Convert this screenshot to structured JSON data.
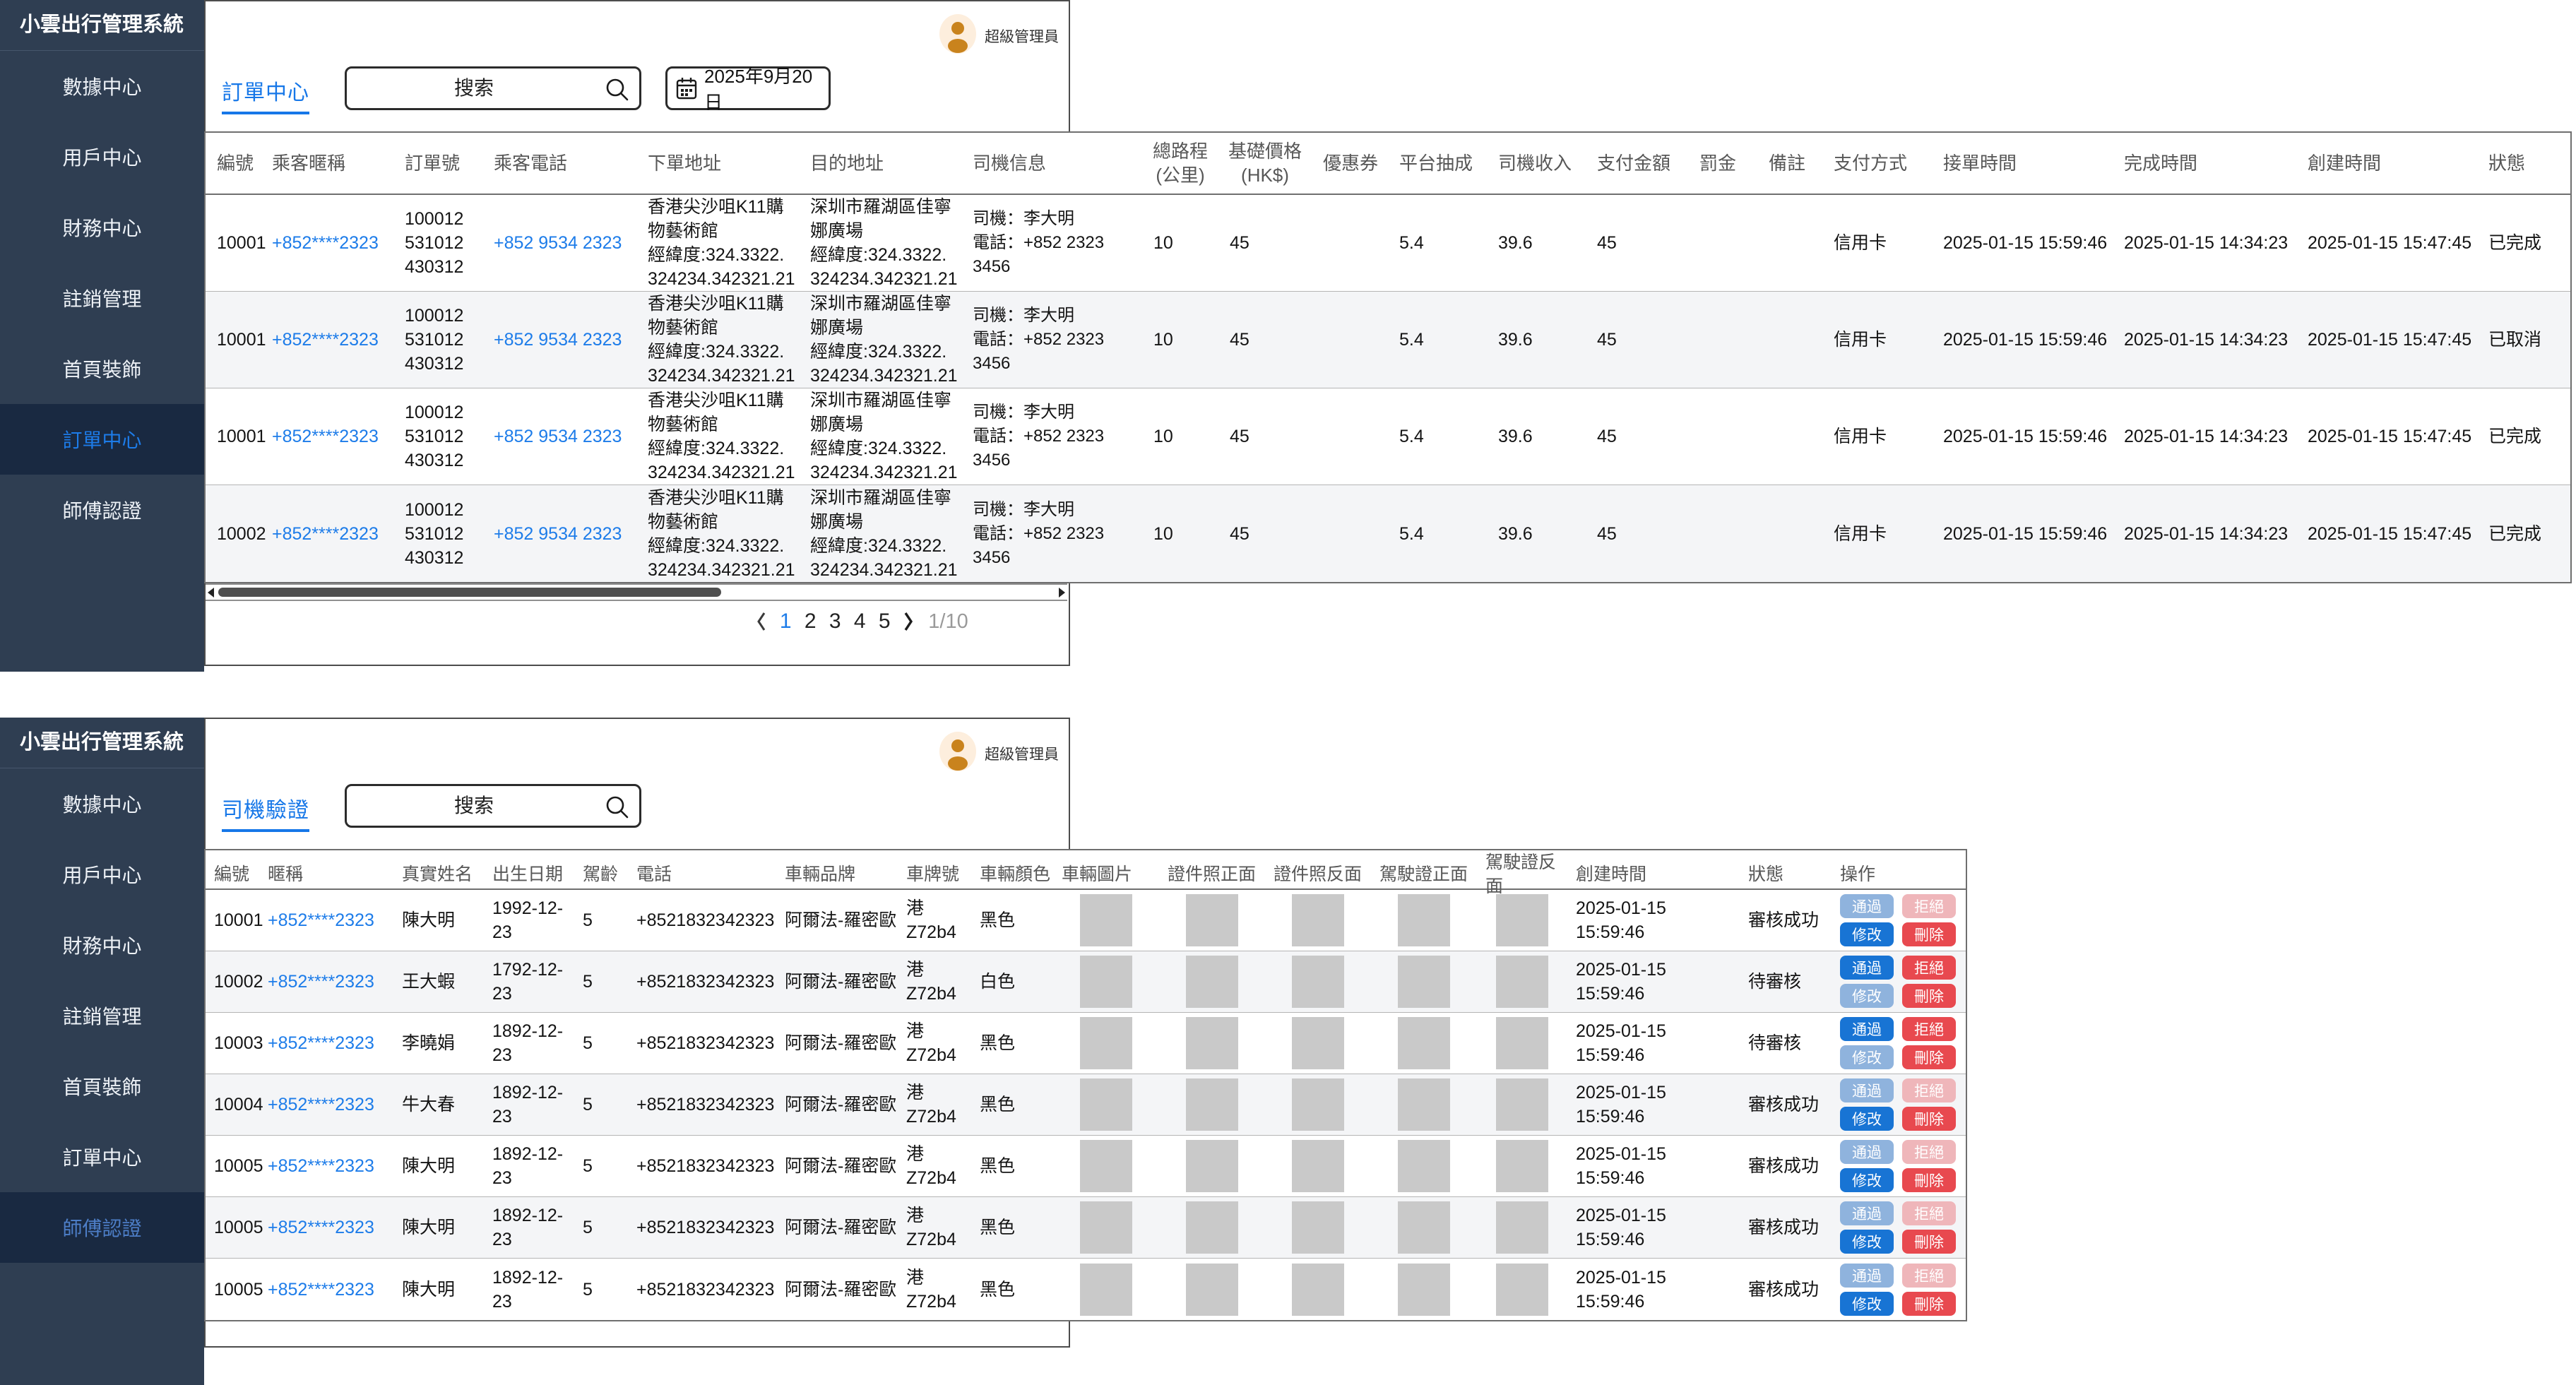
{
  "app": {
    "title": "小雲出行管理系統",
    "admin_label": "超級管理員"
  },
  "colors": {
    "sidebar_bg": "#2f3e52",
    "sidebar_selected_bg": "#192941",
    "sidebar_selected_text": "#1d7ce9",
    "sidebar_selected_text_bottom": "#4d7ec7",
    "link_blue": "#1d7ce9",
    "tab_blue": "#1677e8",
    "button_blue": "#1874d4",
    "button_blue_disabled": "#8fb3dd",
    "button_red": "#e8494f",
    "button_red_disabled": "#efb6ba",
    "image_placeholder": "#c9c9c9"
  },
  "sidebar_items": [
    "數據中心",
    "用戶中心",
    "財務中心",
    "註銷管理",
    "首頁裝飾",
    "訂單中心",
    "師傅認證"
  ],
  "order_center": {
    "tab_label": "訂單中心",
    "selected_sidebar_index": 5,
    "search_placeholder": "搜索",
    "date_value": "2025年9月20日",
    "columns": [
      "編號",
      "乘客暱稱",
      "訂單號",
      "乘客電話",
      "下單地址",
      "目的地址",
      "司機信息",
      "總路程\n(公里)",
      "基礎價格\n(HK$)",
      "優惠券",
      "平台抽成",
      "司機收入",
      "支付金額",
      "罰金",
      "備註",
      "支付方式",
      "接單時間",
      "完成時間",
      "創建時間",
      "狀態"
    ],
    "rows": [
      {
        "id": "10001",
        "nick": "+852****2323",
        "order_no": "100012\n531012\n430312",
        "phone": "+852 9534 2323",
        "pickup": "香港尖沙咀K11購\n物藝術館\n經緯度:324.3322.\n324234.342321.21",
        "dest": "深圳市羅湖區佳寧\n娜廣場\n經緯度:324.3322.\n324234.342321.21",
        "driver": "司機：李大明\n電話：+852 2323 3456",
        "distance": "10",
        "base_price": "45",
        "coupon": "",
        "commission": "5.4",
        "income": "39.6",
        "amount": "45",
        "fine": "",
        "remark": "",
        "method": "信用卡",
        "accept_time": "2025-01-15 15:59:46",
        "finish_time": "2025-01-15 14:34:23",
        "create_time": "2025-01-15 15:47:45",
        "status": "已完成"
      },
      {
        "id": "10001",
        "nick": "+852****2323",
        "order_no": "100012\n531012\n430312",
        "phone": "+852 9534 2323",
        "pickup": "香港尖沙咀K11購\n物藝術館\n經緯度:324.3322.\n324234.342321.21",
        "dest": "深圳市羅湖區佳寧\n娜廣場\n經緯度:324.3322.\n324234.342321.21",
        "driver": "司機：李大明\n電話：+852 2323 3456",
        "distance": "10",
        "base_price": "45",
        "coupon": "",
        "commission": "5.4",
        "income": "39.6",
        "amount": "45",
        "fine": "",
        "remark": "",
        "method": "信用卡",
        "accept_time": "2025-01-15 15:59:46",
        "finish_time": "2025-01-15 14:34:23",
        "create_time": "2025-01-15 15:47:45",
        "status": "已取消"
      },
      {
        "id": "10001",
        "nick": "+852****2323",
        "order_no": "100012\n531012\n430312",
        "phone": "+852 9534 2323",
        "pickup": "香港尖沙咀K11購\n物藝術館\n經緯度:324.3322.\n324234.342321.21",
        "dest": "深圳市羅湖區佳寧\n娜廣場\n經緯度:324.3322.\n324234.342321.21",
        "driver": "司機：李大明\n電話：+852 2323 3456",
        "distance": "10",
        "base_price": "45",
        "coupon": "",
        "commission": "5.4",
        "income": "39.6",
        "amount": "45",
        "fine": "",
        "remark": "",
        "method": "信用卡",
        "accept_time": "2025-01-15 15:59:46",
        "finish_time": "2025-01-15 14:34:23",
        "create_time": "2025-01-15 15:47:45",
        "status": "已完成"
      },
      {
        "id": "10002",
        "nick": "+852****2323",
        "order_no": "100012\n531012\n430312",
        "phone": "+852 9534 2323",
        "pickup": "香港尖沙咀K11購\n物藝術館\n經緯度:324.3322.\n324234.342321.21",
        "dest": "深圳市羅湖區佳寧\n娜廣場\n經緯度:324.3322.\n324234.342321.21",
        "driver": "司機：李大明\n電話：+852 2323 3456",
        "distance": "10",
        "base_price": "45",
        "coupon": "",
        "commission": "5.4",
        "income": "39.6",
        "amount": "45",
        "fine": "",
        "remark": "",
        "method": "信用卡",
        "accept_time": "2025-01-15 15:59:46",
        "finish_time": "2025-01-15 14:34:23",
        "create_time": "2025-01-15 15:47:45",
        "status": "已完成"
      }
    ],
    "pagination": {
      "pages": [
        "1",
        "2",
        "3",
        "4",
        "5"
      ],
      "current": "1",
      "summary": "1/10"
    }
  },
  "driver_center": {
    "tab_label": "司機驗證",
    "selected_sidebar_index": 6,
    "search_placeholder": "搜索",
    "columns": [
      "編號",
      "暱稱",
      "真實姓名",
      "出生日期",
      "駕齡",
      "電話",
      "車輛品牌",
      "車牌號",
      "車輛顏色",
      "車輛圖片",
      "證件照正面",
      "證件照反面",
      "駕駛證正面",
      "駕駛證反面",
      "創建時間",
      "狀態",
      "操作"
    ],
    "buttons": {
      "approve": "通過",
      "reject": "拒絕",
      "edit": "修改",
      "delete": "刪除"
    },
    "rows": [
      {
        "id": "10001",
        "nick": "+852****2323",
        "name": "陳大明",
        "birth": "1992-12-23",
        "years": "5",
        "phone": "+8521832342323",
        "brand": "阿爾法-羅密歐",
        "plate": "港Z72b4",
        "color": "黑色",
        "created": "2025-01-15 15:59:46",
        "status": "審核成功",
        "approve_enabled": false,
        "reject_enabled": false,
        "edit_enabled": true,
        "delete_enabled": true
      },
      {
        "id": "10002",
        "nick": "+852****2323",
        "name": "王大蝦",
        "birth": "1792-12-23",
        "years": "5",
        "phone": "+8521832342323",
        "brand": "阿爾法-羅密歐",
        "plate": "港Z72b4",
        "color": "白色",
        "created": "2025-01-15 15:59:46",
        "status": "待審核",
        "approve_enabled": true,
        "reject_enabled": true,
        "edit_enabled": false,
        "delete_enabled": true
      },
      {
        "id": "10003",
        "nick": "+852****2323",
        "name": "李曉娟",
        "birth": "1892-12-23",
        "years": "5",
        "phone": "+8521832342323",
        "brand": "阿爾法-羅密歐",
        "plate": "港Z72b4",
        "color": "黑色",
        "created": "2025-01-15 15:59:46",
        "status": "待審核",
        "approve_enabled": true,
        "reject_enabled": true,
        "edit_enabled": false,
        "delete_enabled": true
      },
      {
        "id": "10004",
        "nick": "+852****2323",
        "name": "牛大春",
        "birth": "1892-12-23",
        "years": "5",
        "phone": "+8521832342323",
        "brand": "阿爾法-羅密歐",
        "plate": "港Z72b4",
        "color": "黑色",
        "created": "2025-01-15 15:59:46",
        "status": "審核成功",
        "approve_enabled": false,
        "reject_enabled": false,
        "edit_enabled": true,
        "delete_enabled": true
      },
      {
        "id": "10005",
        "nick": "+852****2323",
        "name": "陳大明",
        "birth": "1892-12-23",
        "years": "5",
        "phone": "+8521832342323",
        "brand": "阿爾法-羅密歐",
        "plate": "港Z72b4",
        "color": "黑色",
        "created": "2025-01-15 15:59:46",
        "status": "審核成功",
        "approve_enabled": false,
        "reject_enabled": false,
        "edit_enabled": true,
        "delete_enabled": true
      },
      {
        "id": "10005",
        "nick": "+852****2323",
        "name": "陳大明",
        "birth": "1892-12-23",
        "years": "5",
        "phone": "+8521832342323",
        "brand": "阿爾法-羅密歐",
        "plate": "港Z72b4",
        "color": "黑色",
        "created": "2025-01-15 15:59:46",
        "status": "審核成功",
        "approve_enabled": false,
        "reject_enabled": false,
        "edit_enabled": true,
        "delete_enabled": true
      },
      {
        "id": "10005",
        "nick": "+852****2323",
        "name": "陳大明",
        "birth": "1892-12-23",
        "years": "5",
        "phone": "+8521832342323",
        "brand": "阿爾法-羅密歐",
        "plate": "港Z72b4",
        "color": "黑色",
        "created": "2025-01-15 15:59:46",
        "status": "審核成功",
        "approve_enabled": false,
        "reject_enabled": false,
        "edit_enabled": true,
        "delete_enabled": true
      }
    ]
  }
}
